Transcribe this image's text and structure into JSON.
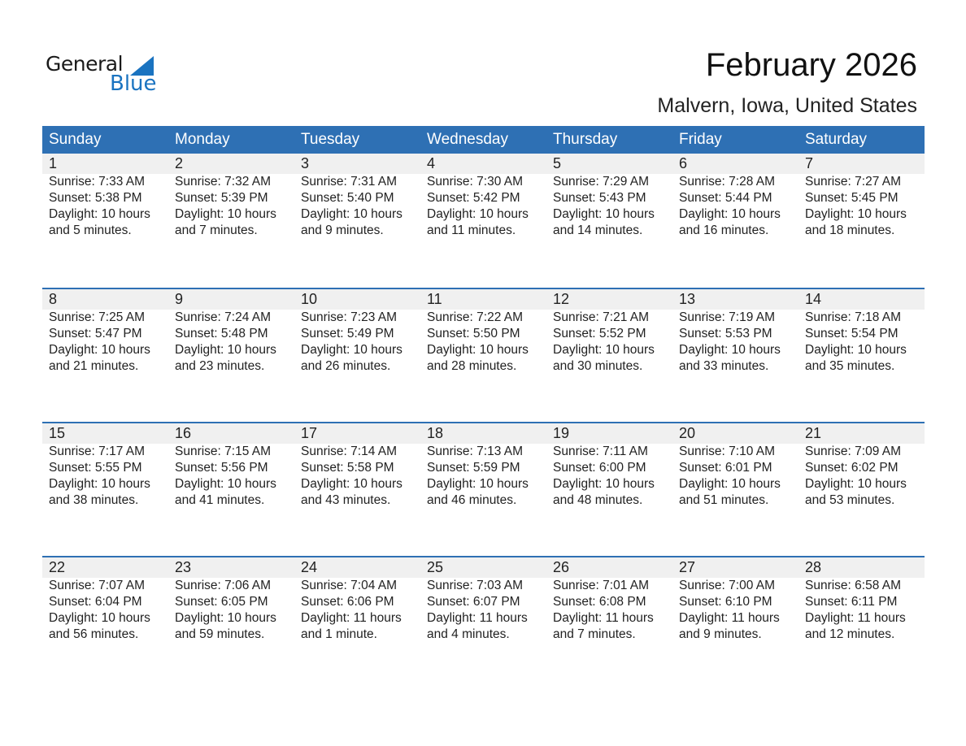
{
  "logo": {
    "text1": "General",
    "text2": "Blue"
  },
  "title": "February 2026",
  "subtitle": "Malvern, Iowa, United States",
  "weekdays": [
    "Sunday",
    "Monday",
    "Tuesday",
    "Wednesday",
    "Thursday",
    "Friday",
    "Saturday"
  ],
  "colors": {
    "header": "#2e70b4",
    "band": "#f0f0f0",
    "logo_blue": "#1a73c0"
  },
  "weeks": [
    [
      {
        "day": "1",
        "sunrise": "Sunrise: 7:33 AM",
        "sunset": "Sunset: 5:38 PM",
        "daylight1": "Daylight: 10 hours",
        "daylight2": "and 5 minutes."
      },
      {
        "day": "2",
        "sunrise": "Sunrise: 7:32 AM",
        "sunset": "Sunset: 5:39 PM",
        "daylight1": "Daylight: 10 hours",
        "daylight2": "and 7 minutes."
      },
      {
        "day": "3",
        "sunrise": "Sunrise: 7:31 AM",
        "sunset": "Sunset: 5:40 PM",
        "daylight1": "Daylight: 10 hours",
        "daylight2": "and 9 minutes."
      },
      {
        "day": "4",
        "sunrise": "Sunrise: 7:30 AM",
        "sunset": "Sunset: 5:42 PM",
        "daylight1": "Daylight: 10 hours",
        "daylight2": "and 11 minutes."
      },
      {
        "day": "5",
        "sunrise": "Sunrise: 7:29 AM",
        "sunset": "Sunset: 5:43 PM",
        "daylight1": "Daylight: 10 hours",
        "daylight2": "and 14 minutes."
      },
      {
        "day": "6",
        "sunrise": "Sunrise: 7:28 AM",
        "sunset": "Sunset: 5:44 PM",
        "daylight1": "Daylight: 10 hours",
        "daylight2": "and 16 minutes."
      },
      {
        "day": "7",
        "sunrise": "Sunrise: 7:27 AM",
        "sunset": "Sunset: 5:45 PM",
        "daylight1": "Daylight: 10 hours",
        "daylight2": "and 18 minutes."
      }
    ],
    [
      {
        "day": "8",
        "sunrise": "Sunrise: 7:25 AM",
        "sunset": "Sunset: 5:47 PM",
        "daylight1": "Daylight: 10 hours",
        "daylight2": "and 21 minutes."
      },
      {
        "day": "9",
        "sunrise": "Sunrise: 7:24 AM",
        "sunset": "Sunset: 5:48 PM",
        "daylight1": "Daylight: 10 hours",
        "daylight2": "and 23 minutes."
      },
      {
        "day": "10",
        "sunrise": "Sunrise: 7:23 AM",
        "sunset": "Sunset: 5:49 PM",
        "daylight1": "Daylight: 10 hours",
        "daylight2": "and 26 minutes."
      },
      {
        "day": "11",
        "sunrise": "Sunrise: 7:22 AM",
        "sunset": "Sunset: 5:50 PM",
        "daylight1": "Daylight: 10 hours",
        "daylight2": "and 28 minutes."
      },
      {
        "day": "12",
        "sunrise": "Sunrise: 7:21 AM",
        "sunset": "Sunset: 5:52 PM",
        "daylight1": "Daylight: 10 hours",
        "daylight2": "and 30 minutes."
      },
      {
        "day": "13",
        "sunrise": "Sunrise: 7:19 AM",
        "sunset": "Sunset: 5:53 PM",
        "daylight1": "Daylight: 10 hours",
        "daylight2": "and 33 minutes."
      },
      {
        "day": "14",
        "sunrise": "Sunrise: 7:18 AM",
        "sunset": "Sunset: 5:54 PM",
        "daylight1": "Daylight: 10 hours",
        "daylight2": "and 35 minutes."
      }
    ],
    [
      {
        "day": "15",
        "sunrise": "Sunrise: 7:17 AM",
        "sunset": "Sunset: 5:55 PM",
        "daylight1": "Daylight: 10 hours",
        "daylight2": "and 38 minutes."
      },
      {
        "day": "16",
        "sunrise": "Sunrise: 7:15 AM",
        "sunset": "Sunset: 5:56 PM",
        "daylight1": "Daylight: 10 hours",
        "daylight2": "and 41 minutes."
      },
      {
        "day": "17",
        "sunrise": "Sunrise: 7:14 AM",
        "sunset": "Sunset: 5:58 PM",
        "daylight1": "Daylight: 10 hours",
        "daylight2": "and 43 minutes."
      },
      {
        "day": "18",
        "sunrise": "Sunrise: 7:13 AM",
        "sunset": "Sunset: 5:59 PM",
        "daylight1": "Daylight: 10 hours",
        "daylight2": "and 46 minutes."
      },
      {
        "day": "19",
        "sunrise": "Sunrise: 7:11 AM",
        "sunset": "Sunset: 6:00 PM",
        "daylight1": "Daylight: 10 hours",
        "daylight2": "and 48 minutes."
      },
      {
        "day": "20",
        "sunrise": "Sunrise: 7:10 AM",
        "sunset": "Sunset: 6:01 PM",
        "daylight1": "Daylight: 10 hours",
        "daylight2": "and 51 minutes."
      },
      {
        "day": "21",
        "sunrise": "Sunrise: 7:09 AM",
        "sunset": "Sunset: 6:02 PM",
        "daylight1": "Daylight: 10 hours",
        "daylight2": "and 53 minutes."
      }
    ],
    [
      {
        "day": "22",
        "sunrise": "Sunrise: 7:07 AM",
        "sunset": "Sunset: 6:04 PM",
        "daylight1": "Daylight: 10 hours",
        "daylight2": "and 56 minutes."
      },
      {
        "day": "23",
        "sunrise": "Sunrise: 7:06 AM",
        "sunset": "Sunset: 6:05 PM",
        "daylight1": "Daylight: 10 hours",
        "daylight2": "and 59 minutes."
      },
      {
        "day": "24",
        "sunrise": "Sunrise: 7:04 AM",
        "sunset": "Sunset: 6:06 PM",
        "daylight1": "Daylight: 11 hours",
        "daylight2": "and 1 minute."
      },
      {
        "day": "25",
        "sunrise": "Sunrise: 7:03 AM",
        "sunset": "Sunset: 6:07 PM",
        "daylight1": "Daylight: 11 hours",
        "daylight2": "and 4 minutes."
      },
      {
        "day": "26",
        "sunrise": "Sunrise: 7:01 AM",
        "sunset": "Sunset: 6:08 PM",
        "daylight1": "Daylight: 11 hours",
        "daylight2": "and 7 minutes."
      },
      {
        "day": "27",
        "sunrise": "Sunrise: 7:00 AM",
        "sunset": "Sunset: 6:10 PM",
        "daylight1": "Daylight: 11 hours",
        "daylight2": "and 9 minutes."
      },
      {
        "day": "28",
        "sunrise": "Sunrise: 6:58 AM",
        "sunset": "Sunset: 6:11 PM",
        "daylight1": "Daylight: 11 hours",
        "daylight2": "and 12 minutes."
      }
    ]
  ]
}
